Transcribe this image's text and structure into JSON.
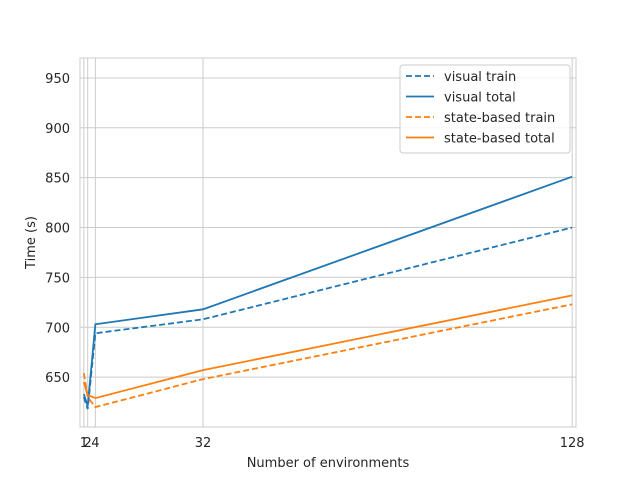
{
  "chart_data": {
    "type": "line",
    "title": "",
    "xlabel": "Number of environments",
    "ylabel": "Time (s)",
    "x": [
      1,
      2,
      4,
      32,
      128
    ],
    "x_ticks": [
      1,
      2,
      4,
      32,
      128
    ],
    "y_ticks": [
      650,
      700,
      750,
      800,
      850,
      900,
      950
    ],
    "xlim": [
      0,
      129
    ],
    "ylim": [
      600,
      970
    ],
    "grid": true,
    "legend_position": "top-right",
    "series": [
      {
        "name": "visual train",
        "style": "dashed",
        "color": "#1f77b4",
        "values": [
          630,
          618,
          694,
          708,
          800
        ]
      },
      {
        "name": "visual total",
        "style": "solid",
        "color": "#1f77b4",
        "values": [
          633,
          621,
          703,
          718,
          851
        ]
      },
      {
        "name": "state-based train",
        "style": "dashed",
        "color": "#ff7f0e",
        "values": [
          654,
          630,
          620,
          648,
          723
        ]
      },
      {
        "name": "state-based total",
        "style": "solid",
        "color": "#ff7f0e",
        "values": [
          645,
          632,
          629,
          657,
          732
        ]
      }
    ]
  }
}
